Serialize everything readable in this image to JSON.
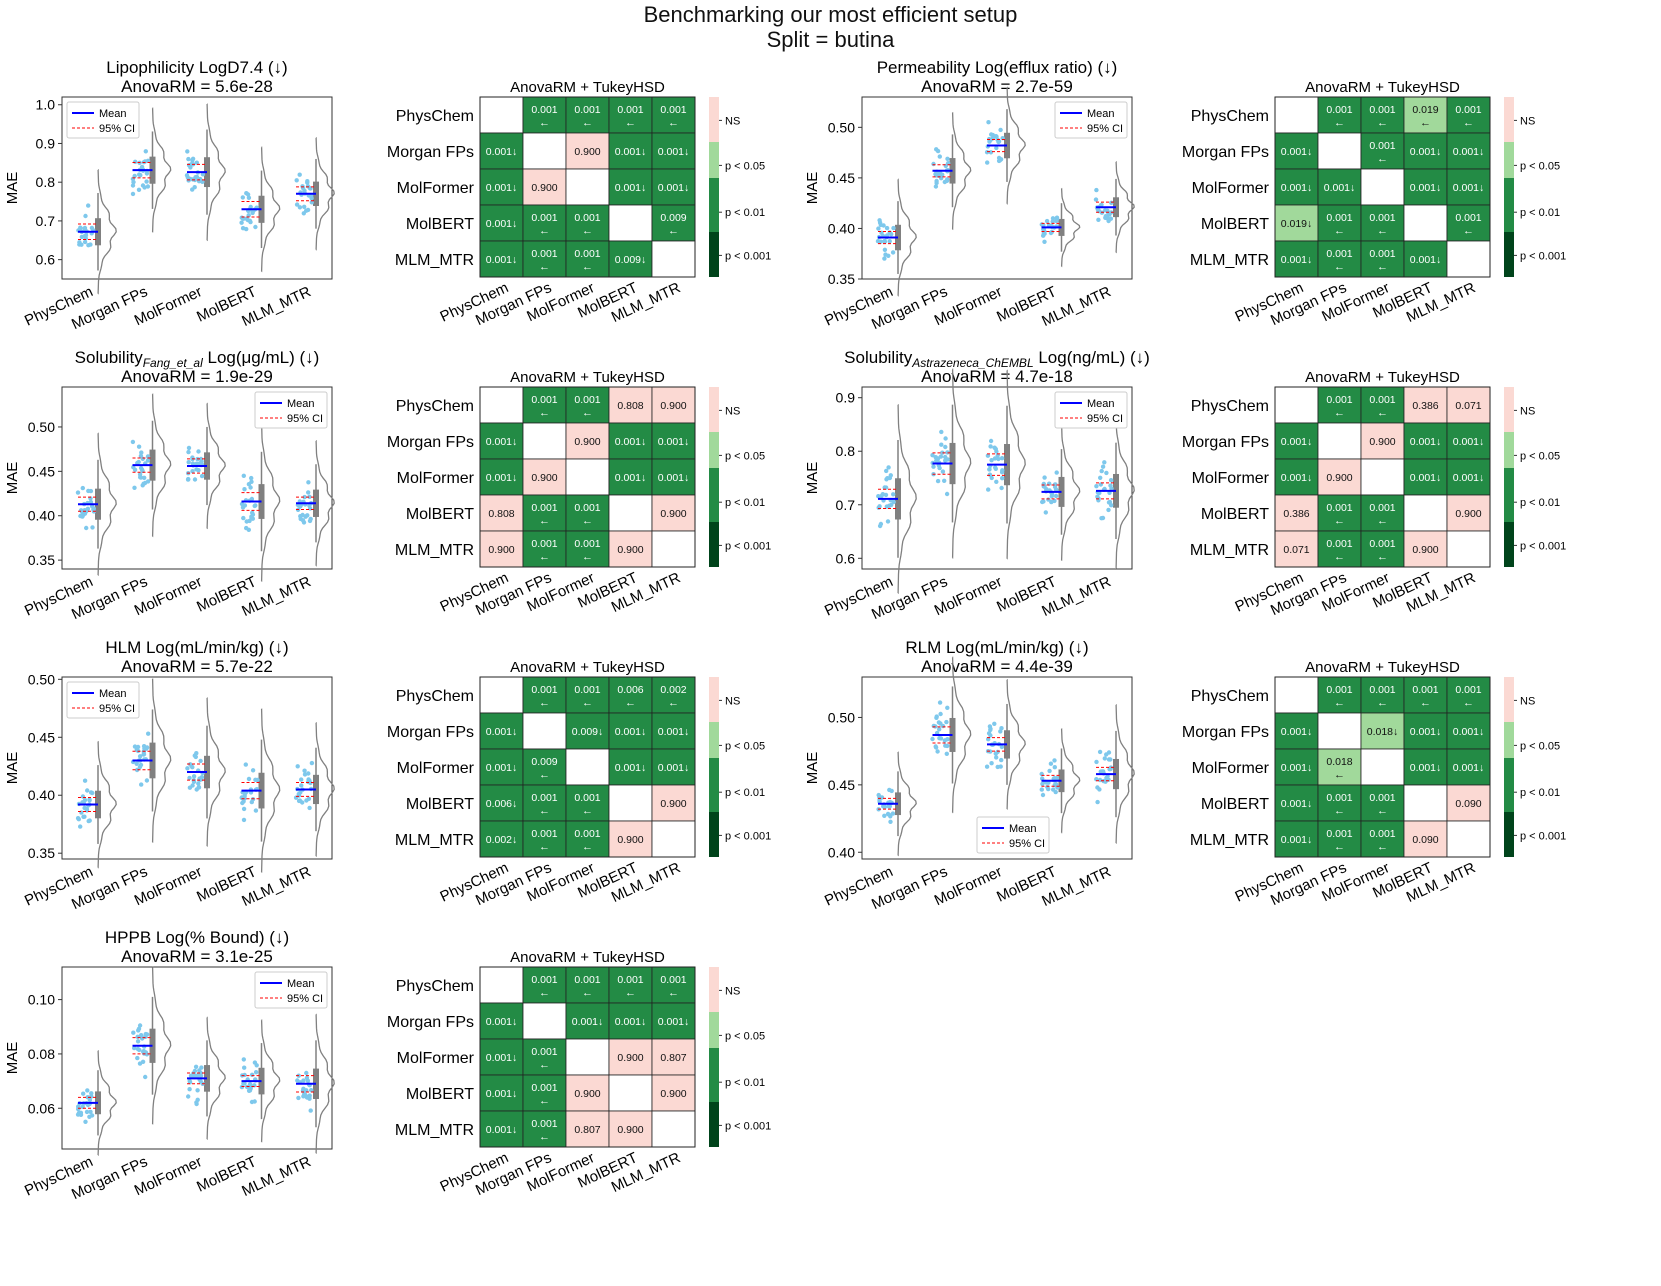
{
  "figure": {
    "title_line1": "Benchmarking our most efficient setup",
    "title_line2": "Split = butina"
  },
  "labels": {
    "mean": "Mean",
    "ci": "95% CI",
    "heatmap_title": "AnovaRM + TukeyHSD",
    "ns": "NS",
    "p005": "p < 0.05",
    "p001": "p < 0.01",
    "p0001": "p < 0.001"
  },
  "colors": {
    "ns": "#fbd9d3",
    "p005": "#a1d99b",
    "p001": "#238b45",
    "p0001": "#00441b",
    "points": "#7ec8ec",
    "mean_line": "#0000ff",
    "ci_line": "#ff0000",
    "violin": "#808080"
  },
  "chart_data": [
    {
      "type": "violin",
      "title": "Lipophilicity LogD7.4 (↓)",
      "subtitle": "AnovaRM = 5.6e-28",
      "ylabel": "MAE",
      "ylim": [
        0.55,
        1.02
      ],
      "yticks": [
        "0.6",
        "0.7",
        "0.8",
        "0.9",
        "1.0"
      ],
      "ytick_values": [
        0.6,
        0.7,
        0.8,
        0.9,
        1.0
      ],
      "legend": "top-left",
      "categories": [
        "PhysChem",
        "Morgan FPs",
        "MolFormer",
        "MolBERT",
        "MLM_MTR"
      ],
      "means": [
        0.672,
        0.831,
        0.826,
        0.73,
        0.77
      ],
      "ci_half": [
        0.02,
        0.02,
        0.02,
        0.02,
        0.018
      ],
      "spread": [
        0.05,
        0.05,
        0.055,
        0.05,
        0.045
      ]
    },
    {
      "type": "heatmap",
      "title": "AnovaRM + TukeyHSD",
      "rows": [
        "PhysChem",
        "Morgan FPs",
        "MolFormer",
        "MolBERT",
        "MLM_MTR"
      ],
      "cols": [
        "PhysChem",
        "Morgan FPs",
        "MolFormer",
        "MolBERT",
        "MLM_MTR"
      ],
      "cells": [
        [
          "",
          "0.001\n←",
          "0.001\n←",
          "0.001\n←",
          "0.001\n←"
        ],
        [
          "0.001↓",
          "",
          "0.900",
          "0.001↓",
          "0.001↓"
        ],
        [
          "0.001↓",
          "0.900",
          "",
          "0.001↓",
          "0.001↓"
        ],
        [
          "0.001↓",
          "0.001\n←",
          "0.001\n←",
          "",
          "0.009\n←"
        ],
        [
          "0.001↓",
          "0.001\n←",
          "0.001\n←",
          "0.009↓",
          ""
        ]
      ]
    },
    {
      "type": "violin",
      "title": "Permeability Log(efflux ratio) (↓)",
      "subtitle": "AnovaRM = 2.7e-59",
      "ylabel": "MAE",
      "ylim": [
        0.35,
        0.53
      ],
      "yticks": [
        "0.35",
        "0.40",
        "0.45",
        "0.50"
      ],
      "ytick_values": [
        0.35,
        0.4,
        0.45,
        0.5
      ],
      "legend": "top-right",
      "categories": [
        "PhysChem",
        "Morgan FPs",
        "MolFormer",
        "MolBERT",
        "MLM_MTR"
      ],
      "means": [
        0.391,
        0.457,
        0.482,
        0.401,
        0.421
      ],
      "ci_half": [
        0.006,
        0.006,
        0.006,
        0.004,
        0.005
      ],
      "spread": [
        0.018,
        0.018,
        0.018,
        0.012,
        0.014
      ]
    },
    {
      "type": "heatmap",
      "title": "AnovaRM + TukeyHSD",
      "rows": [
        "PhysChem",
        "Morgan FPs",
        "MolFormer",
        "MolBERT",
        "MLM_MTR"
      ],
      "cols": [
        "PhysChem",
        "Morgan FPs",
        "MolFormer",
        "MolBERT",
        "MLM_MTR"
      ],
      "cells": [
        [
          "",
          "0.001\n←",
          "0.001\n←",
          "0.019\n←",
          "0.001\n←"
        ],
        [
          "0.001↓",
          "",
          "0.001\n←",
          "0.001↓",
          "0.001↓"
        ],
        [
          "0.001↓",
          "0.001↓",
          "",
          "0.001↓",
          "0.001↓"
        ],
        [
          "0.019↓",
          "0.001\n←",
          "0.001\n←",
          "",
          "0.001\n←"
        ],
        [
          "0.001↓",
          "0.001\n←",
          "0.001\n←",
          "0.001↓",
          ""
        ]
      ]
    },
    {
      "type": "violin",
      "title": "Solubility",
      "title_sub": "Fang_et_al",
      "title_rest": " Log(μg/mL) (↓)",
      "subtitle": "AnovaRM = 1.9e-29",
      "ylabel": "MAE",
      "ylim": [
        0.34,
        0.545
      ],
      "yticks": [
        "0.35",
        "0.40",
        "0.45",
        "0.50"
      ],
      "ytick_values": [
        0.35,
        0.4,
        0.45,
        0.5
      ],
      "legend": "top-right",
      "categories": [
        "PhysChem",
        "Morgan FPs",
        "MolFormer",
        "MolBERT",
        "MLM_MTR"
      ],
      "means": [
        0.413,
        0.457,
        0.456,
        0.416,
        0.414
      ],
      "ci_half": [
        0.008,
        0.008,
        0.008,
        0.01,
        0.007
      ],
      "spread": [
        0.025,
        0.025,
        0.022,
        0.028,
        0.022
      ]
    },
    {
      "type": "heatmap",
      "title": "AnovaRM + TukeyHSD",
      "rows": [
        "PhysChem",
        "Morgan FPs",
        "MolFormer",
        "MolBERT",
        "MLM_MTR"
      ],
      "cols": [
        "PhysChem",
        "Morgan FPs",
        "MolFormer",
        "MolBERT",
        "MLM_MTR"
      ],
      "cells": [
        [
          "",
          "0.001\n←",
          "0.001\n←",
          "0.808",
          "0.900"
        ],
        [
          "0.001↓",
          "",
          "0.900",
          "0.001↓",
          "0.001↓"
        ],
        [
          "0.001↓",
          "0.900",
          "",
          "0.001↓",
          "0.001↓"
        ],
        [
          "0.808",
          "0.001\n←",
          "0.001\n←",
          "",
          "0.900"
        ],
        [
          "0.900",
          "0.001\n←",
          "0.001\n←",
          "0.900",
          ""
        ]
      ]
    },
    {
      "type": "violin",
      "title": "Solubility",
      "title_sub": "Astrazeneca_ChEMBL",
      "title_rest": " Log(ng/mL) (↓)",
      "subtitle": "AnovaRM = 4.7e-18",
      "ylabel": "MAE",
      "ylim": [
        0.58,
        0.92
      ],
      "yticks": [
        "0.6",
        "0.7",
        "0.8",
        "0.9"
      ],
      "ytick_values": [
        0.6,
        0.7,
        0.8,
        0.9
      ],
      "legend": "top-right",
      "categories": [
        "PhysChem",
        "Morgan FPs",
        "MolFormer",
        "MolBERT",
        "MLM_MTR"
      ],
      "means": [
        0.711,
        0.777,
        0.775,
        0.724,
        0.726
      ],
      "ci_half": [
        0.018,
        0.02,
        0.02,
        0.013,
        0.015
      ],
      "spread": [
        0.055,
        0.055,
        0.055,
        0.04,
        0.045
      ]
    },
    {
      "type": "heatmap",
      "title": "AnovaRM + TukeyHSD",
      "rows": [
        "PhysChem",
        "Morgan FPs",
        "MolFormer",
        "MolBERT",
        "MLM_MTR"
      ],
      "cols": [
        "PhysChem",
        "Morgan FPs",
        "MolFormer",
        "MolBERT",
        "MLM_MTR"
      ],
      "cells": [
        [
          "",
          "0.001\n←",
          "0.001\n←",
          "0.386",
          "0.071"
        ],
        [
          "0.001↓",
          "",
          "0.900",
          "0.001↓",
          "0.001↓"
        ],
        [
          "0.001↓",
          "0.900",
          "",
          "0.001↓",
          "0.001↓"
        ],
        [
          "0.386",
          "0.001\n←",
          "0.001\n←",
          "",
          "0.900"
        ],
        [
          "0.071",
          "0.001\n←",
          "0.001\n←",
          "0.900",
          ""
        ]
      ]
    },
    {
      "type": "violin",
      "title": "HLM Log(mL/min/kg) (↓)",
      "subtitle": "AnovaRM = 5.7e-22",
      "ylabel": "MAE",
      "ylim": [
        0.345,
        0.502
      ],
      "yticks": [
        "0.35",
        "0.40",
        "0.45",
        "0.50"
      ],
      "ytick_values": [
        0.35,
        0.4,
        0.45,
        0.5
      ],
      "legend": "top-left",
      "categories": [
        "PhysChem",
        "Morgan FPs",
        "MolFormer",
        "MolBERT",
        "MLM_MTR"
      ],
      "means": [
        0.392,
        0.43,
        0.42,
        0.404,
        0.405
      ],
      "ci_half": [
        0.006,
        0.008,
        0.007,
        0.007,
        0.006
      ],
      "spread": [
        0.017,
        0.022,
        0.02,
        0.022,
        0.018
      ]
    },
    {
      "type": "heatmap",
      "title": "AnovaRM + TukeyHSD",
      "rows": [
        "PhysChem",
        "Morgan FPs",
        "MolFormer",
        "MolBERT",
        "MLM_MTR"
      ],
      "cols": [
        "PhysChem",
        "Morgan FPs",
        "MolFormer",
        "MolBERT",
        "MLM_MTR"
      ],
      "cells": [
        [
          "",
          "0.001\n←",
          "0.001\n←",
          "0.006\n←",
          "0.002\n←"
        ],
        [
          "0.001↓",
          "",
          "0.009↓",
          "0.001↓",
          "0.001↓"
        ],
        [
          "0.001↓",
          "0.009\n←",
          "",
          "0.001↓",
          "0.001↓"
        ],
        [
          "0.006↓",
          "0.001\n←",
          "0.001\n←",
          "",
          "0.900"
        ],
        [
          "0.002↓",
          "0.001\n←",
          "0.001\n←",
          "0.900",
          ""
        ]
      ]
    },
    {
      "type": "violin",
      "title": "RLM Log(mL/min/kg) (↓)",
      "subtitle": "AnovaRM = 4.4e-39",
      "ylabel": "MAE",
      "ylim": [
        0.395,
        0.53
      ],
      "yticks": [
        "0.40",
        "0.45",
        "0.50"
      ],
      "ytick_values": [
        0.4,
        0.45,
        0.5
      ],
      "legend": "bottom-center",
      "categories": [
        "PhysChem",
        "Morgan FPs",
        "MolFormer",
        "MolBERT",
        "MLM_MTR"
      ],
      "means": [
        0.436,
        0.487,
        0.48,
        0.453,
        0.458
      ],
      "ci_half": [
        0.004,
        0.006,
        0.005,
        0.004,
        0.005
      ],
      "spread": [
        0.012,
        0.018,
        0.015,
        0.012,
        0.016
      ]
    },
    {
      "type": "heatmap",
      "title": "AnovaRM + TukeyHSD",
      "rows": [
        "PhysChem",
        "Morgan FPs",
        "MolFormer",
        "MolBERT",
        "MLM_MTR"
      ],
      "cols": [
        "PhysChem",
        "Morgan FPs",
        "MolFormer",
        "MolBERT",
        "MLM_MTR"
      ],
      "cells": [
        [
          "",
          "0.001\n←",
          "0.001\n←",
          "0.001\n←",
          "0.001\n←"
        ],
        [
          "0.001↓",
          "",
          "0.018↓",
          "0.001↓",
          "0.001↓"
        ],
        [
          "0.001↓",
          "0.018\n←",
          "",
          "0.001↓",
          "0.001↓"
        ],
        [
          "0.001↓",
          "0.001\n←",
          "0.001\n←",
          "",
          "0.090"
        ],
        [
          "0.001↓",
          "0.001\n←",
          "0.001\n←",
          "0.090",
          ""
        ]
      ]
    },
    {
      "type": "violin",
      "title": "HPPB Log(% Bound) (↓)",
      "subtitle": "AnovaRM = 3.1e-25",
      "ylabel": "MAE",
      "ylim": [
        0.045,
        0.112
      ],
      "yticks": [
        "0.06",
        "0.08",
        "0.10"
      ],
      "ytick_values": [
        0.06,
        0.08,
        0.1
      ],
      "legend": "top-right",
      "categories": [
        "PhysChem",
        "Morgan FPs",
        "MolFormer",
        "MolBERT",
        "MLM_MTR"
      ],
      "means": [
        0.062,
        0.083,
        0.071,
        0.07,
        0.069
      ],
      "ci_half": [
        0.002,
        0.003,
        0.002,
        0.002,
        0.003
      ],
      "spread": [
        0.006,
        0.009,
        0.007,
        0.007,
        0.008
      ]
    },
    {
      "type": "heatmap",
      "title": "AnovaRM + TukeyHSD",
      "rows": [
        "PhysChem",
        "Morgan FPs",
        "MolFormer",
        "MolBERT",
        "MLM_MTR"
      ],
      "cols": [
        "PhysChem",
        "Morgan FPs",
        "MolFormer",
        "MolBERT",
        "MLM_MTR"
      ],
      "cells": [
        [
          "",
          "0.001\n←",
          "0.001\n←",
          "0.001\n←",
          "0.001\n←"
        ],
        [
          "0.001↓",
          "",
          "0.001↓",
          "0.001↓",
          "0.001↓"
        ],
        [
          "0.001↓",
          "0.001\n←",
          "",
          "0.900",
          "0.807"
        ],
        [
          "0.001↓",
          "0.001\n←",
          "0.900",
          "",
          "0.900"
        ],
        [
          "0.001↓",
          "0.001\n←",
          "0.807",
          "0.900",
          ""
        ]
      ]
    }
  ]
}
